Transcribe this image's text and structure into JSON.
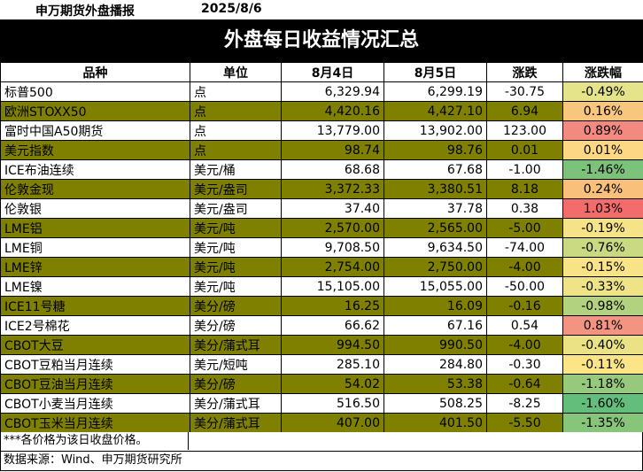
{
  "header": {
    "org": "申万期货外盘播报",
    "date": "2025/8/6"
  },
  "title": "外盘每日收益情况汇总",
  "columns": [
    "品种",
    "单位",
    "8月4日",
    "8月5日",
    "涨跌",
    "涨跌幅"
  ],
  "rows": [
    {
      "name": "标普500",
      "unit": "点",
      "d1": "6,329.94",
      "d2": "6,299.19",
      "chg": "-30.75",
      "pct": "-0.49%",
      "pct_color": "#e6e48a",
      "olive": false
    },
    {
      "name": "欧洲STOXX50",
      "unit": "点",
      "d1": "4,420.16",
      "d2": "4,427.10",
      "chg": "6.94",
      "pct": "0.16%",
      "pct_color": "#f9c67e",
      "olive": true
    },
    {
      "name": "富时中国A50期货",
      "unit": "点",
      "d1": "13,779.00",
      "d2": "13,902.00",
      "chg": "123.00",
      "pct": "0.89%",
      "pct_color": "#f28a82",
      "olive": false
    },
    {
      "name": "美元指数",
      "unit": "点",
      "d1": "98.74",
      "d2": "98.76",
      "chg": "0.01",
      "pct": "0.01%",
      "pct_color": "#fdd783",
      "olive": true
    },
    {
      "name": "ICE布油连续",
      "unit": "美元/桶",
      "d1": "68.68",
      "d2": "67.68",
      "chg": "-1.00",
      "pct": "-1.46%",
      "pct_color": "#7cc27a",
      "olive": false
    },
    {
      "name": "伦敦金现",
      "unit": "美元/盎司",
      "d1": "3,372.33",
      "d2": "3,380.51",
      "chg": "8.18",
      "pct": "0.24%",
      "pct_color": "#f9c07b",
      "olive": true
    },
    {
      "name": "伦敦银",
      "unit": "美元/盎司",
      "d1": "37.40",
      "d2": "37.78",
      "chg": "0.38",
      "pct": "1.03%",
      "pct_color": "#f26c6c",
      "olive": false
    },
    {
      "name": "LME铝",
      "unit": "美元/吨",
      "d1": "2,570.00",
      "d2": "2,565.00",
      "chg": "-5.00",
      "pct": "-0.19%",
      "pct_color": "#f6e387",
      "olive": true
    },
    {
      "name": "LME铜",
      "unit": "美元/吨",
      "d1": "9,708.50",
      "d2": "9,634.50",
      "chg": "-74.00",
      "pct": "-0.76%",
      "pct_color": "#c9da82",
      "olive": false
    },
    {
      "name": "LME锌",
      "unit": "美元/吨",
      "d1": "2,754.00",
      "d2": "2,750.00",
      "chg": "-4.00",
      "pct": "-0.15%",
      "pct_color": "#f8e487",
      "olive": true
    },
    {
      "name": "LME镍",
      "unit": "美元/吨",
      "d1": "15,105.00",
      "d2": "15,055.00",
      "chg": "-50.00",
      "pct": "-0.33%",
      "pct_color": "#eee386",
      "olive": false
    },
    {
      "name": "ICE11号糖",
      "unit": "美分/磅",
      "d1": "16.25",
      "d2": "16.09",
      "chg": "-0.16",
      "pct": "-0.98%",
      "pct_color": "#b3d27f",
      "olive": true
    },
    {
      "name": "ICE2号棉花",
      "unit": "美分/磅",
      "d1": "66.62",
      "d2": "67.16",
      "chg": "0.54",
      "pct": "0.81%",
      "pct_color": "#f39482",
      "olive": false
    },
    {
      "name": "CBOT大豆",
      "unit": "美分/蒲式耳",
      "d1": "994.50",
      "d2": "990.50",
      "chg": "-4.00",
      "pct": "-0.40%",
      "pct_color": "#ebe285",
      "olive": true
    },
    {
      "name": "CBOT豆粕当月连续",
      "unit": "美元/短吨",
      "d1": "285.10",
      "d2": "284.80",
      "chg": "-0.30",
      "pct": "-0.11%",
      "pct_color": "#fbe587",
      "olive": false
    },
    {
      "name": "CBOT豆油当月连续",
      "unit": "美分/磅",
      "d1": "54.02",
      "d2": "53.38",
      "chg": "-0.64",
      "pct": "-1.18%",
      "pct_color": "#97c97c",
      "olive": true
    },
    {
      "name": "CBOT小麦当月连续",
      "unit": "美分/蒲式耳",
      "d1": "516.50",
      "d2": "508.25",
      "chg": "-8.25",
      "pct": "-1.60%",
      "pct_color": "#63be7b",
      "olive": false
    },
    {
      "name": "CBOT玉米当月连续",
      "unit": "美分/蒲式耳",
      "d1": "407.00",
      "d2": "401.50",
      "chg": "-5.50",
      "pct": "-1.35%",
      "pct_color": "#87c57b",
      "olive": true
    }
  ],
  "footer": {
    "note": "***各价格为该日收盘价格。",
    "source": "数据来源：Wind、申万期货研究所"
  }
}
